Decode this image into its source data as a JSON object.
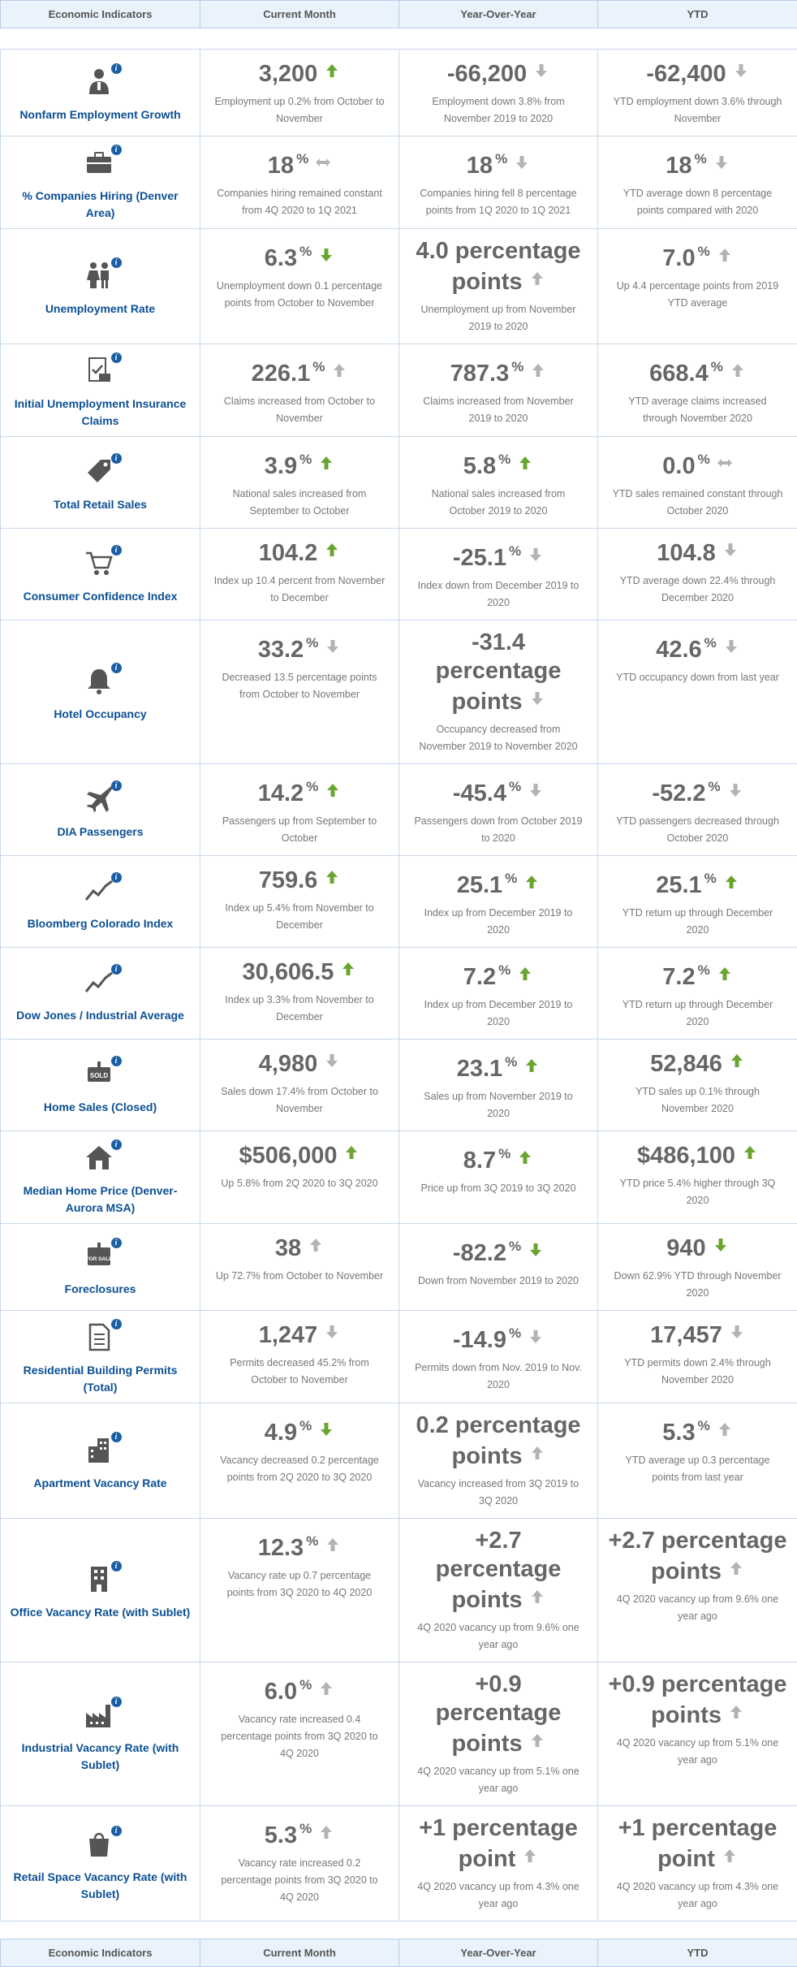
{
  "header": {
    "col1": "Economic Indicators",
    "col2": "Current Month",
    "col3": "Year-Over-Year",
    "col4": "YTD"
  },
  "colors": {
    "up": "#6aa52f",
    "down": "#b3b3b3",
    "label": "#0b4f94",
    "header_bg": "#eaf2fb"
  },
  "rows": [
    {
      "icon": "employee-icon",
      "name": "Nonfarm Employment Growth",
      "cm": {
        "value": "3,200",
        "pct": "",
        "trend": "up",
        "desc": "Employment up 0.2% from October to November"
      },
      "yoy": {
        "value": "-66,200",
        "pct": "",
        "trend": "down",
        "desc": "Employment down 3.8% from November 2019 to 2020"
      },
      "ytd": {
        "value": "-62,400",
        "pct": "",
        "trend": "down",
        "desc": "YTD employment down 3.6% through November"
      }
    },
    {
      "icon": "briefcase-icon",
      "name": "% Companies Hiring (Denver Area)",
      "cm": {
        "value": "18",
        "pct": "%",
        "trend": "flat",
        "desc": "Companies hiring remained constant from 4Q 2020 to 1Q 2021"
      },
      "yoy": {
        "value": "18",
        "pct": "%",
        "trend": "down",
        "desc": "Companies hiring fell 8 percentage points from 1Q 2020 to 1Q 2021"
      },
      "ytd": {
        "value": "18",
        "pct": "%",
        "trend": "down",
        "desc": "YTD average down 8 percentage points compared with 2020"
      }
    },
    {
      "icon": "people-icon",
      "name": "Unemployment Rate",
      "cm": {
        "value": "6.3",
        "pct": "%",
        "trend": "down-green",
        "desc": "Unemployment down 0.1 percentage points from October to November"
      },
      "yoy": {
        "value": "4.0 percentage points",
        "pct": "",
        "trend": "up-gray",
        "desc": "Unemployment up from November 2019 to 2020"
      },
      "ytd": {
        "value": "7.0",
        "pct": "%",
        "trend": "up-gray",
        "desc": "Up 4.4 percentage points from 2019 YTD average"
      }
    },
    {
      "icon": "claim-form-icon",
      "name": "Initial Unemployment Insurance Claims",
      "cm": {
        "value": "226.1",
        "pct": "%",
        "trend": "up-gray",
        "desc": "Claims increased from October to November"
      },
      "yoy": {
        "value": "787.3",
        "pct": "%",
        "trend": "up-gray",
        "desc": "Claims increased from November 2019 to 2020"
      },
      "ytd": {
        "value": "668.4",
        "pct": "%",
        "trend": "up-gray",
        "desc": "YTD average claims increased through November 2020"
      }
    },
    {
      "icon": "price-tag-icon",
      "name": "Total Retail Sales",
      "cm": {
        "value": "3.9",
        "pct": "%",
        "trend": "up",
        "desc": "National sales increased from September to October"
      },
      "yoy": {
        "value": "5.8",
        "pct": "%",
        "trend": "up",
        "desc": "National sales increased from October 2019 to 2020"
      },
      "ytd": {
        "value": "0.0",
        "pct": "%",
        "trend": "flat",
        "desc": "YTD sales remained constant through October 2020"
      }
    },
    {
      "icon": "shopping-cart-icon",
      "name": "Consumer Confidence Index",
      "cm": {
        "value": "104.2",
        "pct": "",
        "trend": "up",
        "desc": "Index up 10.4 percent from November to December"
      },
      "yoy": {
        "value": "-25.1",
        "pct": "%",
        "trend": "down",
        "desc": "Index down from December 2019 to 2020"
      },
      "ytd": {
        "value": "104.8",
        "pct": "",
        "trend": "down",
        "desc": "YTD average down 22.4% through December 2020"
      }
    },
    {
      "icon": "bell-icon",
      "name": "Hotel Occupancy",
      "cm": {
        "value": "33.2",
        "pct": "%",
        "trend": "down",
        "desc": "Decreased 13.5 percentage points from October to November"
      },
      "yoy": {
        "value": "-31.4 percentage points",
        "pct": "",
        "trend": "down",
        "desc": "Occupancy decreased from November 2019 to November 2020"
      },
      "ytd": {
        "value": "42.6",
        "pct": "%",
        "trend": "down",
        "desc": "YTD occupancy down from last year"
      }
    },
    {
      "icon": "airplane-icon",
      "name": "DIA Passengers",
      "cm": {
        "value": "14.2",
        "pct": "%",
        "trend": "up",
        "desc": "Passengers up from September to October"
      },
      "yoy": {
        "value": "-45.4",
        "pct": "%",
        "trend": "down",
        "desc": "Passengers down from October 2019 to 2020"
      },
      "ytd": {
        "value": "-52.2",
        "pct": "%",
        "trend": "down",
        "desc": "YTD passengers decreased through October 2020"
      }
    },
    {
      "icon": "trend-line-icon",
      "name": "Bloomberg Colorado Index",
      "cm": {
        "value": "759.6",
        "pct": "",
        "trend": "up",
        "desc": "Index up 5.4% from November to December"
      },
      "yoy": {
        "value": "25.1",
        "pct": "%",
        "trend": "up",
        "desc": "Index up from December 2019 to 2020"
      },
      "ytd": {
        "value": "25.1",
        "pct": "%",
        "trend": "up",
        "desc": "YTD return up through December 2020"
      }
    },
    {
      "icon": "trend-line-icon",
      "name": "Dow Jones / Industrial Average",
      "cm": {
        "value": "30,606.5",
        "pct": "",
        "trend": "up",
        "desc": "Index up 3.3% from November to December"
      },
      "yoy": {
        "value": "7.2",
        "pct": "%",
        "trend": "up",
        "desc": "Index up from December 2019 to 2020"
      },
      "ytd": {
        "value": "7.2",
        "pct": "%",
        "trend": "up",
        "desc": "YTD return up through December 2020"
      }
    },
    {
      "icon": "sold-sign-icon",
      "name": "Home Sales (Closed)",
      "icon_text": "SOLD",
      "cm": {
        "value": "4,980",
        "pct": "",
        "trend": "down",
        "desc": "Sales down 17.4% from October to November"
      },
      "yoy": {
        "value": "23.1",
        "pct": "%",
        "trend": "up",
        "desc": "Sales up from November 2019 to 2020"
      },
      "ytd": {
        "value": "52,846",
        "pct": "",
        "trend": "up",
        "desc": "YTD sales up 0.1% through November 2020"
      }
    },
    {
      "icon": "house-icon",
      "name": "Median Home Price (Denver-Aurora MSA)",
      "cm": {
        "value": "$506,000",
        "pct": "",
        "trend": "up",
        "desc": "Up 5.8% from 2Q 2020 to 3Q 2020"
      },
      "yoy": {
        "value": "8.7",
        "pct": "%",
        "trend": "up",
        "desc": "Price up from 3Q 2019 to 3Q 2020"
      },
      "ytd": {
        "value": "$486,100",
        "pct": "",
        "trend": "up",
        "desc": "YTD price 5.4% higher through 3Q 2020"
      }
    },
    {
      "icon": "for-sale-sign-icon",
      "name": "Foreclosures",
      "icon_text": "FOR SALE",
      "cm": {
        "value": "38",
        "pct": "",
        "trend": "up-gray",
        "desc": "Up 72.7% from October to November"
      },
      "yoy": {
        "value": "-82.2",
        "pct": "%",
        "trend": "down-green",
        "desc": "Down from November 2019 to 2020"
      },
      "ytd": {
        "value": "940",
        "pct": "",
        "trend": "down-green",
        "desc": "Down 62.9% YTD through November 2020"
      }
    },
    {
      "icon": "document-icon",
      "name": "Residential Building Permits (Total)",
      "cm": {
        "value": "1,247",
        "pct": "",
        "trend": "down",
        "desc": "Permits decreased 45.2% from October to November"
      },
      "yoy": {
        "value": "-14.9",
        "pct": "%",
        "trend": "down",
        "desc": "Permits down from Nov. 2019 to Nov. 2020"
      },
      "ytd": {
        "value": "17,457",
        "pct": "",
        "trend": "down",
        "desc": "YTD permits down 2.4% through November 2020"
      }
    },
    {
      "icon": "apartment-icon",
      "name": "Apartment Vacancy Rate",
      "cm": {
        "value": "4.9",
        "pct": "%",
        "trend": "down-green",
        "desc": "Vacancy decreased 0.2 percentage points from 2Q 2020 to 3Q 2020"
      },
      "yoy": {
        "value": "0.2 percentage points",
        "pct": "",
        "trend": "up-gray",
        "desc": "Vacancy increased from 3Q 2019 to 3Q 2020"
      },
      "ytd": {
        "value": "5.3",
        "pct": "%",
        "trend": "up-gray",
        "desc": "YTD average up 0.3 percentage points from last year"
      }
    },
    {
      "icon": "office-building-icon",
      "name": "Office Vacancy Rate (with Sublet)",
      "cm": {
        "value": "12.3",
        "pct": "%",
        "trend": "up-gray",
        "desc": "Vacancy rate up 0.7 percentage points from 3Q 2020 to 4Q 2020"
      },
      "yoy": {
        "value": "+2.7 percentage points",
        "pct": "",
        "trend": "up-gray",
        "desc": "4Q 2020 vacancy up from 9.6% one year ago"
      },
      "ytd": {
        "value": "+2.7 percentage points",
        "pct": "",
        "trend": "up-gray",
        "desc": "4Q 2020 vacancy up from 9.6% one year ago"
      }
    },
    {
      "icon": "factory-icon",
      "name": "Industrial Vacancy Rate (with Sublet)",
      "cm": {
        "value": "6.0",
        "pct": "%",
        "trend": "up-gray",
        "desc": "Vacancy rate increased 0.4 percentage points from 3Q 2020 to 4Q 2020"
      },
      "yoy": {
        "value": "+0.9 percentage points",
        "pct": "",
        "trend": "up-gray",
        "desc": "4Q 2020 vacancy up from 5.1% one year ago"
      },
      "ytd": {
        "value": "+0.9 percentage points",
        "pct": "",
        "trend": "up-gray",
        "desc": "4Q 2020 vacancy up from 5.1% one year ago"
      }
    },
    {
      "icon": "shopping-bag-icon",
      "name": "Retail Space Vacancy Rate (with Sublet)",
      "cm": {
        "value": "5.3",
        "pct": "%",
        "trend": "up-gray",
        "desc": "Vacancy rate increased 0.2 percentage points from 3Q 2020 to 4Q 2020"
      },
      "yoy": {
        "value": "+1 percentage point",
        "pct": "",
        "trend": "up-gray",
        "desc": "4Q 2020 vacancy up from 4.3% one year ago"
      },
      "ytd": {
        "value": "+1 percentage point",
        "pct": "",
        "trend": "up-gray",
        "desc": "4Q 2020 vacancy up from 4.3% one year ago"
      }
    }
  ]
}
